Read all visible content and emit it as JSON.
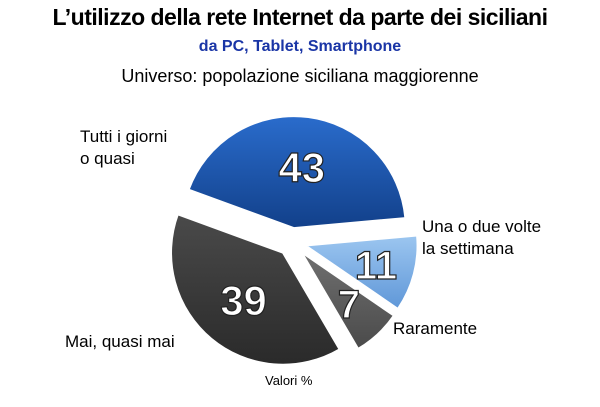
{
  "title": "L’utilizzo della rete Internet da parte dei siciliani",
  "subtitle": "da PC, Tablet, Smartphone",
  "universe": "Universo: popolazione siciliana maggiorenne",
  "footnote": "Valori %",
  "chart_data": {
    "type": "pie",
    "slices": [
      {
        "label_line1": "Tutti i giorni",
        "label_line2": "o quasi",
        "value": 43,
        "color": "#1f5bb0",
        "exploded": true
      },
      {
        "label_line1": "Una o due volte",
        "label_line2": "la settimana",
        "value": 11,
        "color": "#7fb0e6",
        "exploded": true
      },
      {
        "label_line1": "Raramente",
        "label_line2": "",
        "value": 7,
        "color": "#5b5b5b",
        "exploded": true
      },
      {
        "label_line1": "Mai, quasi mai",
        "label_line2": "",
        "value": 39,
        "color": "#3a3a3a",
        "exploded": true
      }
    ]
  }
}
